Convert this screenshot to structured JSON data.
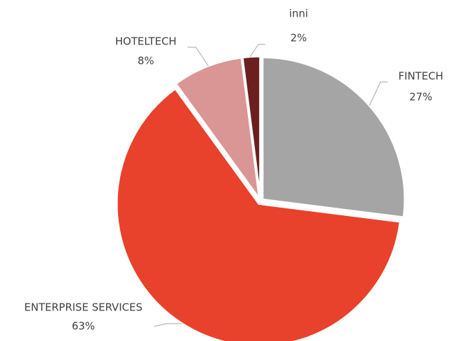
{
  "chart_data": {
    "type": "pie",
    "categories": [
      "FINTECH",
      "ENTERPRISE SERVICES",
      "HOTELTECH",
      "inni"
    ],
    "values": [
      27,
      63,
      8,
      2
    ],
    "value_labels": [
      "27%",
      "63%",
      "8%",
      "2%"
    ],
    "colors": [
      "#a5a5a5",
      "#e8412c",
      "#d99694",
      "#6b1f1f"
    ]
  }
}
